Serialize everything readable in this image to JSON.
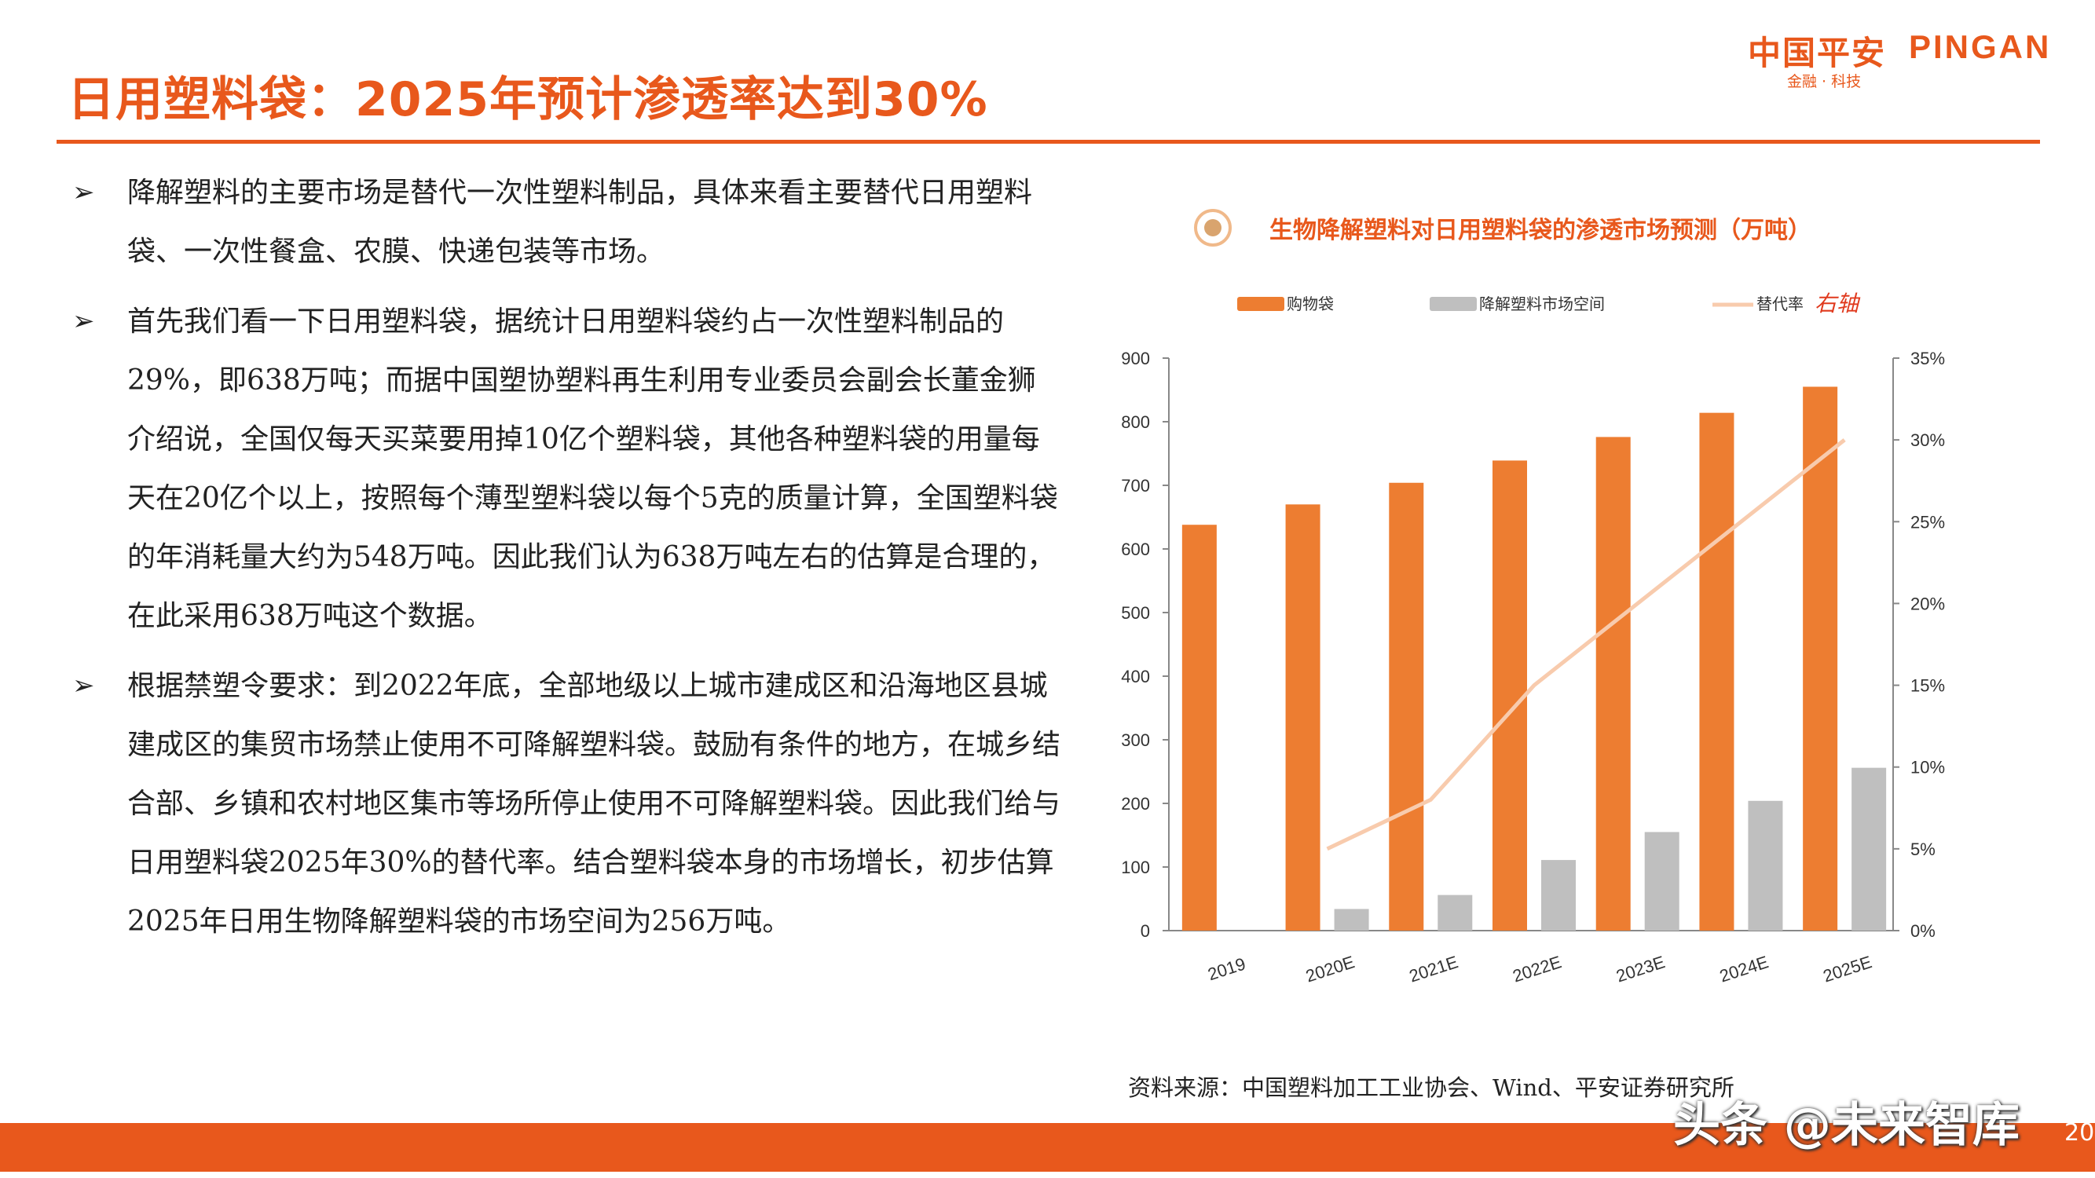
{
  "header": {
    "title": "日用塑料袋：2025年预计渗透率达到30%",
    "logo_cn": "中国平安",
    "logo_en": "PINGAN",
    "logo_sub": "金融 · 科技"
  },
  "bullets": [
    "降解塑料的主要市场是替代一次性塑料制品，具体来看主要替代日用塑料袋、一次性餐盒、农膜、快递包装等市场。",
    "首先我们看一下日用塑料袋，据统计日用塑料袋约占一次性塑料制品的29%，即638万吨；而据中国塑协塑料再生利用专业委员会副会长董金狮介绍说，全国仅每天买菜要用掉10亿个塑料袋，其他各种塑料袋的用量每天在20亿个以上，按照每个薄型塑料袋以每个5克的质量计算，全国塑料袋的年消耗量大约为548万吨。因此我们认为638万吨左右的估算是合理的，在此采用638万吨这个数据。",
    "根据禁塑令要求：到2022年底，全部地级以上城市建成区和沿海地区县城建成区的集贸市场禁止使用不可降解塑料袋。鼓励有条件的地方，在城乡结合部、乡镇和农村地区集市等场所停止使用不可降解塑料袋。因此我们给与日用塑料袋2025年30%的替代率。结合塑料袋本身的市场增长，初步估算2025年日用生物降解塑料袋的市场空间为256万吨。"
  ],
  "chart_title": "生物降解塑料对日用塑料袋的渗透市场预测（万吨）",
  "chart_data": {
    "type": "bar",
    "categories": [
      "2019",
      "2020E",
      "2021E",
      "2022E",
      "2023E",
      "2024E",
      "2025E"
    ],
    "series": [
      {
        "name": "购物袋",
        "kind": "bar",
        "axis": "left",
        "color": "#ed7d31",
        "values": [
          638,
          670,
          704,
          739,
          776,
          814,
          855
        ]
      },
      {
        "name": "降解塑料市场空间",
        "kind": "bar",
        "axis": "left",
        "color": "#bfbfbf",
        "values": [
          null,
          34,
          56,
          111,
          155,
          204,
          256
        ]
      },
      {
        "name": "替代率",
        "kind": "line",
        "axis": "right",
        "color": "#f8cbad",
        "values": [
          null,
          0.05,
          0.08,
          0.15,
          0.2,
          0.25,
          0.3
        ]
      }
    ],
    "legend_extra": "右轴",
    "ylim": [
      0,
      900
    ],
    "yticks": [
      "0",
      "100",
      "200",
      "300",
      "400",
      "500",
      "600",
      "700",
      "800",
      "900"
    ],
    "y2lim": [
      0,
      0.35
    ],
    "y2ticks": [
      "0%",
      "5%",
      "10%",
      "15%",
      "20%",
      "25%",
      "30%",
      "35%"
    ],
    "legend_position": "top",
    "grid": false
  },
  "source": "资料来源：中国塑料加工工业协会、Wind、平安证券研究所",
  "watermark": "头条 @未来智库",
  "page_number": "20",
  "colors": {
    "accent": "#e8581c",
    "bar_primary": "#ed7d31",
    "bar_secondary": "#bfbfbf",
    "line": "#f8cbad"
  }
}
